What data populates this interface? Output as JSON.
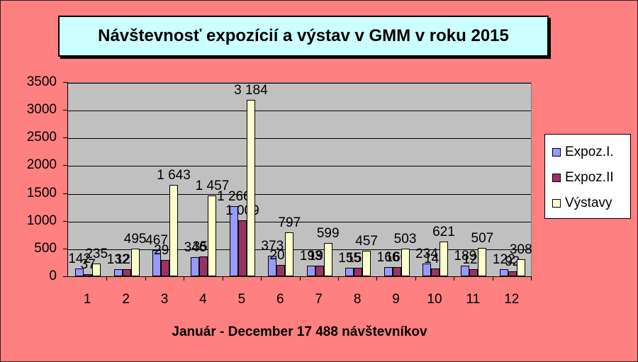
{
  "chart_data": {
    "type": "bar",
    "title": "Návštevnosť expozícií a výstav v GMM v roku 2015",
    "xlabel": "Január - December 17 488 návštevníkov",
    "ylabel": "",
    "categories": [
      "1",
      "2",
      "3",
      "4",
      "5",
      "6",
      "7",
      "8",
      "9",
      "10",
      "11",
      "12"
    ],
    "series": [
      {
        "name": "Expoz.I.",
        "color": "#9999FF",
        "values": [
          142,
          132,
          467,
          346,
          1266,
          373,
          193,
          155,
          166,
          234,
          189,
          122
        ]
      },
      {
        "name": "Expoz.II",
        "color": "#993366",
        "values": [
          37,
          125,
          294,
          359,
          1009,
          207,
          191,
          155,
          160,
          146,
          123,
          92
        ]
      },
      {
        "name": "Výstavy",
        "color": "#FFFFCC",
        "values": [
          235,
          495,
          1643,
          1457,
          3184,
          797,
          599,
          457,
          503,
          621,
          507,
          308
        ]
      }
    ],
    "value_labels": {
      "Expoz.I.": [
        "142",
        "132",
        "467",
        "346",
        "1 266",
        "373",
        "193",
        "155",
        "166",
        "234",
        "189",
        "122"
      ],
      "Expoz.II": [
        "37",
        "125",
        "294",
        "359",
        "1 009",
        "207",
        "191",
        "155",
        "160",
        "146",
        "123",
        "92"
      ],
      "Výstavy": [
        "235",
        "495",
        "1 643",
        "1 457",
        "3 184",
        "797",
        "599",
        "457",
        "503",
        "621",
        "507",
        "308"
      ]
    },
    "ylim": [
      0,
      3500
    ],
    "yticks": [
      "0",
      "500",
      "1000",
      "1500",
      "2000",
      "2500",
      "3000",
      "3500"
    ],
    "grid": true,
    "legend_position": "right",
    "background_color": "#FF8080",
    "plot_area_color": "#C0C0C0",
    "title_box_color": "#CCFFFF"
  },
  "legend": {
    "items": [
      "Expoz.I.",
      "Expoz.II",
      "Výstavy"
    ]
  }
}
